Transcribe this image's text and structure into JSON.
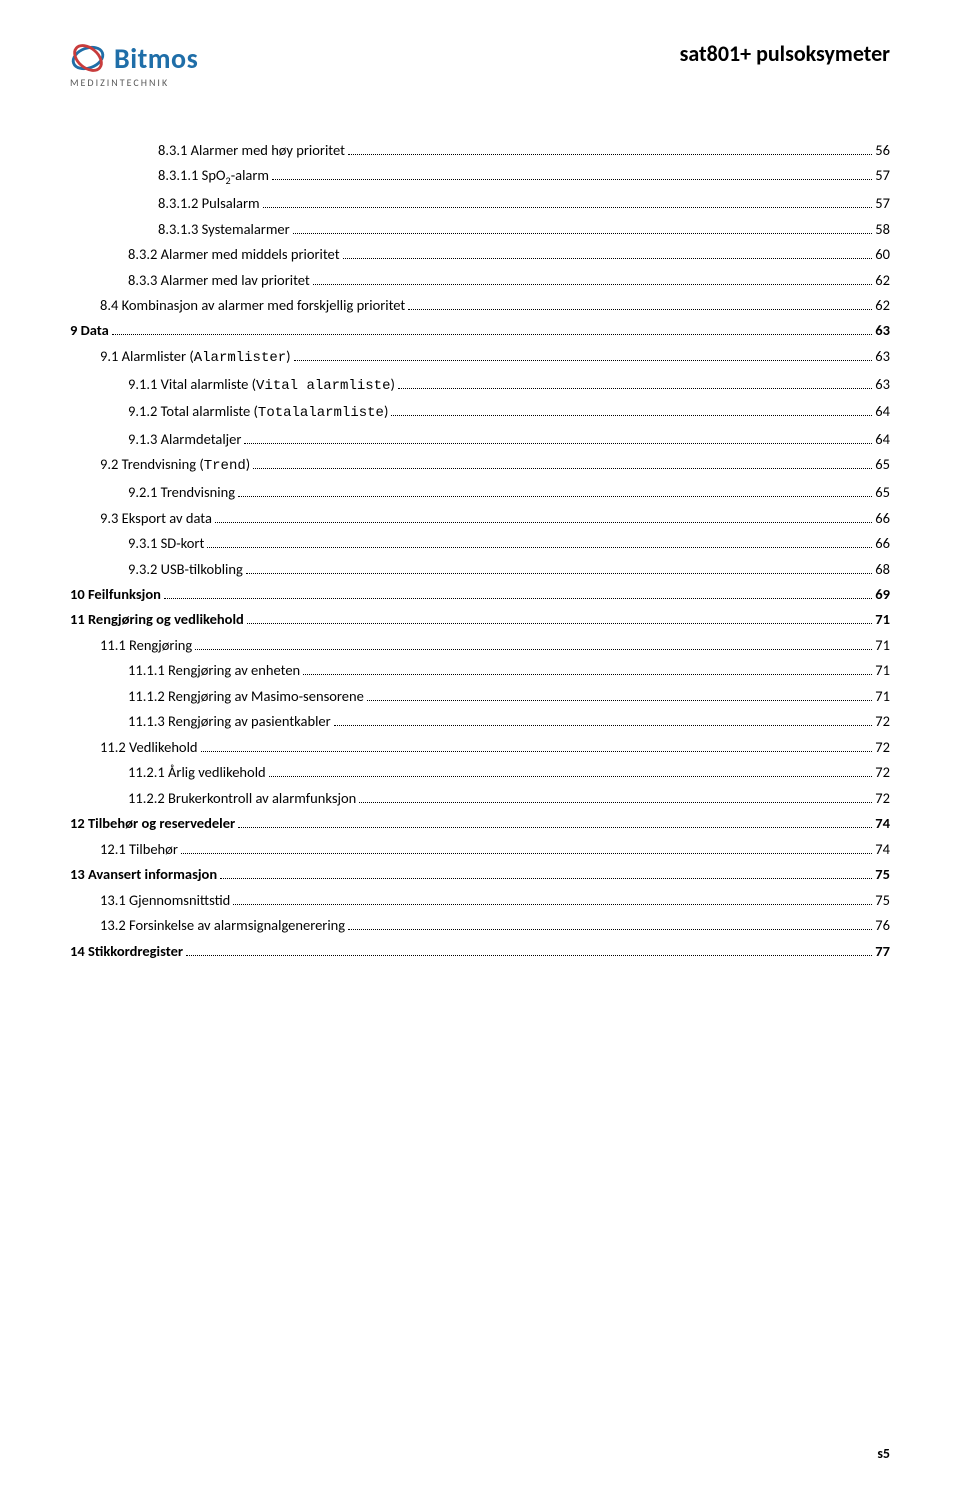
{
  "header": {
    "logo_text": "Bitmos",
    "logo_subtext": "MEDIZINTECHNIK",
    "doc_title": "sat801+ pulsoksymeter"
  },
  "colors": {
    "brand_blue": "#1f6ea8",
    "brand_red": "#c83c3c",
    "text_gray": "#5a5a5a",
    "black": "#000000"
  },
  "toc": [
    {
      "level": 3,
      "num": "8.3.1",
      "title": "Alarmer med høy prioritet",
      "page": "56"
    },
    {
      "level": 3,
      "num": "8.3.1.1",
      "title": "SpO₂-alarm",
      "page": "57"
    },
    {
      "level": 3,
      "num": "8.3.1.2",
      "title": "Pulsalarm",
      "page": "57"
    },
    {
      "level": 3,
      "num": "8.3.1.3",
      "title": "Systemalarmer",
      "page": "58"
    },
    {
      "level": 2,
      "num": "8.3.2",
      "title": "Alarmer med middels prioritet",
      "page": "60"
    },
    {
      "level": 2,
      "num": "8.3.3",
      "title": "Alarmer med lav prioritet",
      "page": "62"
    },
    {
      "level": 1,
      "num": "8.4",
      "title": "Kombinasjon av alarmer med forskjellig prioritet",
      "page": "62"
    },
    {
      "level": 0,
      "num": "9",
      "title": "Data",
      "page": "63",
      "bold_page": true
    },
    {
      "level": 1,
      "num": "9.1",
      "title": "Alarmlister (",
      "mono": "Alarmlister",
      "title_after": ")",
      "page": "63"
    },
    {
      "level": 2,
      "num": "9.1.1",
      "title": "Vital alarmliste (",
      "mono": "Vital alarmliste",
      "title_after": ")",
      "page": "63"
    },
    {
      "level": 2,
      "num": "9.1.2",
      "title": "Total alarmliste (",
      "mono": "Totalalarmliste",
      "title_after": ")",
      "page": "64"
    },
    {
      "level": 2,
      "num": "9.1.3",
      "title": "Alarmdetaljer",
      "page": "64"
    },
    {
      "level": 1,
      "num": "9.2",
      "title": "Trendvisning (",
      "mono": "Trend",
      "title_after": ")",
      "page": "65"
    },
    {
      "level": 2,
      "num": "9.2.1",
      "title": "Trendvisning",
      "page": "65"
    },
    {
      "level": 1,
      "num": "9.3",
      "title": "Eksport av data",
      "page": "66"
    },
    {
      "level": 2,
      "num": "9.3.1",
      "title": "SD-kort",
      "page": "66"
    },
    {
      "level": 2,
      "num": "9.3.2",
      "title": "USB-tilkobling",
      "page": "68"
    },
    {
      "level": 0,
      "num": "10",
      "title": "Feilfunksjon",
      "page": "69",
      "bold_page": true
    },
    {
      "level": 0,
      "num": "11",
      "title": "Rengjøring og vedlikehold",
      "page": "71",
      "bold_page": true
    },
    {
      "level": 1,
      "num": "11.1",
      "title": "Rengjøring",
      "page": "71"
    },
    {
      "level": 2,
      "num": "11.1.1",
      "title": "Rengjøring av enheten",
      "page": "71"
    },
    {
      "level": 2,
      "num": "11.1.2",
      "title": "Rengjøring av Masimo-sensorene",
      "page": "71"
    },
    {
      "level": 2,
      "num": "11.1.3",
      "title": "Rengjøring av pasientkabler",
      "page": "72"
    },
    {
      "level": 1,
      "num": "11.2",
      "title": "Vedlikehold",
      "page": "72"
    },
    {
      "level": 2,
      "num": "11.2.1",
      "title": "Årlig vedlikehold",
      "page": "72"
    },
    {
      "level": 2,
      "num": "11.2.2",
      "title": "Brukerkontroll av alarmfunksjon",
      "page": "72"
    },
    {
      "level": 0,
      "num": "12",
      "title": "Tilbehør og reservedeler",
      "page": "74",
      "bold_page": true
    },
    {
      "level": 1,
      "num": "12.1",
      "title": "Tilbehør",
      "page": "74"
    },
    {
      "level": 0,
      "num": "13",
      "title": "Avansert informasjon",
      "page": "75",
      "bold_page": true
    },
    {
      "level": 1,
      "num": "13.1",
      "title": "Gjennomsnittstid",
      "page": "75"
    },
    {
      "level": 1,
      "num": "13.2",
      "title": "Forsinkelse av alarmsignalgenerering",
      "page": "76"
    },
    {
      "level": 0,
      "num": "14",
      "title": "Stikkordregister",
      "page": "77",
      "bold_page": true
    }
  ],
  "footer": {
    "page_label": "s5"
  }
}
